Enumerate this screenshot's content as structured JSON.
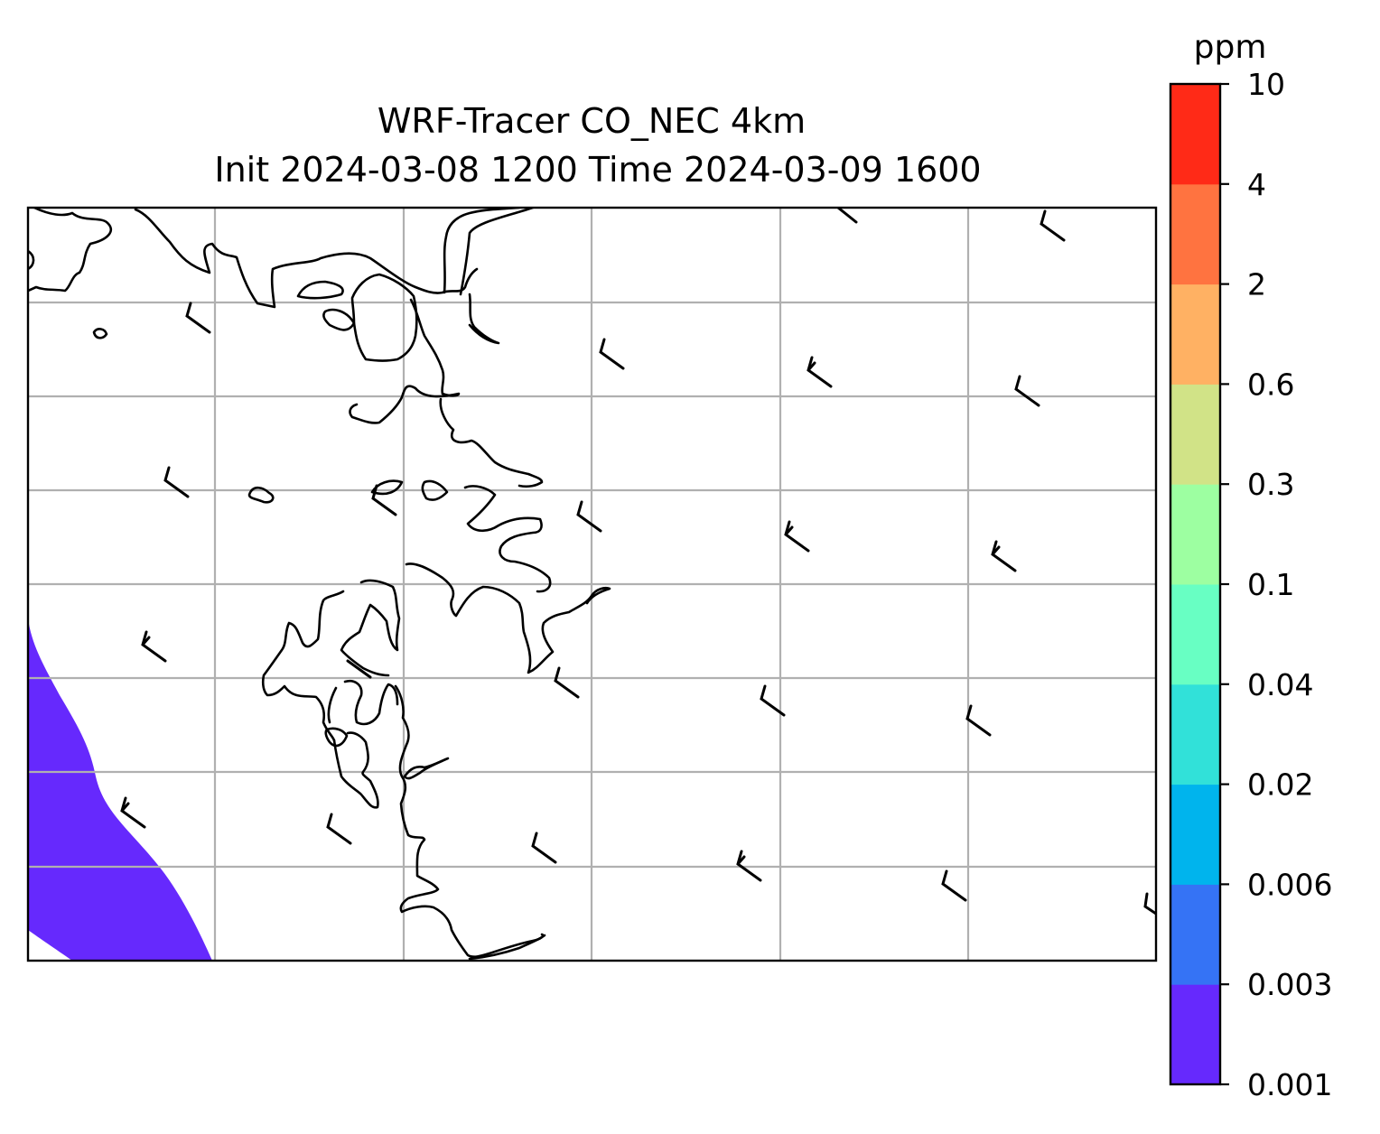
{
  "title": {
    "line1": "WRF-Tracer CO_NEC 4km",
    "line2": "Init 2024-03-08 1200 Time 2024-03-09 1600"
  },
  "colorbar": {
    "unit": "ppm",
    "levels": [
      "0.001",
      "0.003",
      "0.006",
      "0.02",
      "0.04",
      "0.1",
      "0.3",
      "0.6",
      "2",
      "4",
      "10"
    ],
    "colors": [
      "#6629fd",
      "#3573f5",
      "#00b4ed",
      "#31e1d9",
      "#68ffc3",
      "#9dffa1",
      "#d1e387",
      "#ffb163",
      "#ff7340",
      "#ff2a17"
    ]
  },
  "map": {
    "gridlines": true,
    "gridline_color": "#b0b0b0",
    "coastline_color": "#000000",
    "tracer_fill_color": "#6629fd",
    "tracer_fill_level": "0.001-0.003",
    "tracer_fill_location": "bottom-left (southwest) corner",
    "wind_barbs": "short staff with half/full barbs, northwesterly flow"
  }
}
